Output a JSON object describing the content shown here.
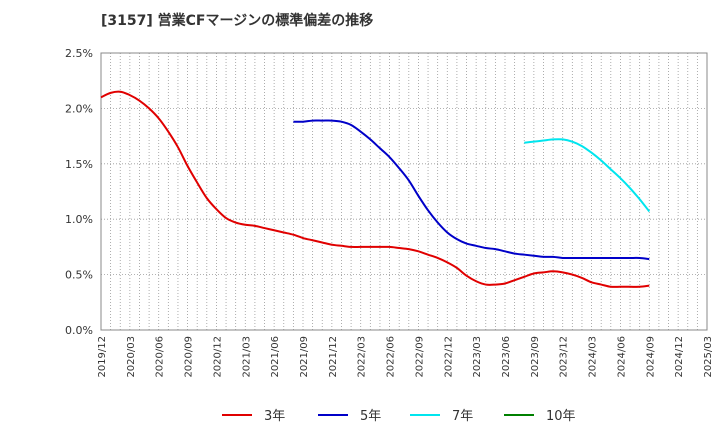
{
  "title": "[3157]  営業CFマージンの標準偏差の推移",
  "colors": {
    "3y": "#e00000",
    "5y": "#0000c8",
    "7y": "#00e5ee",
    "10y": "#008000",
    "grid": "#999999",
    "axis": "#888888"
  },
  "chart_data": {
    "type": "line",
    "title": "[3157]  営業CFマージンの標準偏差の推移",
    "ylim": [
      0,
      0.025
    ],
    "y_ticks": [
      "0.0%",
      "0.5%",
      "1.0%",
      "1.5%",
      "2.0%",
      "2.5%"
    ],
    "x_tick_labels": [
      "2019/12",
      "2020/03",
      "2020/06",
      "2020/09",
      "2020/12",
      "2021/03",
      "2021/06",
      "2021/09",
      "2021/12",
      "2022/03",
      "2022/06",
      "2022/09",
      "2022/12",
      "2023/03",
      "2023/06",
      "2023/09",
      "2023/12",
      "2024/03",
      "2024/06",
      "2024/09",
      "2024/12",
      "2025/03"
    ],
    "x_range": [
      "2019/12",
      "2025/03"
    ],
    "grid": true,
    "legend_position": "bottom",
    "series": [
      {
        "name": "3年",
        "color": "#e00000",
        "points": [
          [
            "2019/12",
            0.021
          ],
          [
            "2020/01",
            0.0214
          ],
          [
            "2020/02",
            0.0215
          ],
          [
            "2020/03",
            0.0212
          ],
          [
            "2020/04",
            0.0207
          ],
          [
            "2020/05",
            0.02
          ],
          [
            "2020/06",
            0.0191
          ],
          [
            "2020/07",
            0.0179
          ],
          [
            "2020/08",
            0.0165
          ],
          [
            "2020/09",
            0.0148
          ],
          [
            "2020/10",
            0.0133
          ],
          [
            "2020/11",
            0.0119
          ],
          [
            "2020/12",
            0.0109
          ],
          [
            "2021/01",
            0.0101
          ],
          [
            "2021/02",
            0.0097
          ],
          [
            "2021/03",
            0.0095
          ],
          [
            "2021/04",
            0.0094
          ],
          [
            "2021/05",
            0.0092
          ],
          [
            "2021/06",
            0.009
          ],
          [
            "2021/07",
            0.0088
          ],
          [
            "2021/08",
            0.0086
          ],
          [
            "2021/09",
            0.0083
          ],
          [
            "2021/10",
            0.0081
          ],
          [
            "2021/11",
            0.0079
          ],
          [
            "2021/12",
            0.0077
          ],
          [
            "2022/01",
            0.0076
          ],
          [
            "2022/02",
            0.0075
          ],
          [
            "2022/03",
            0.0075
          ],
          [
            "2022/04",
            0.0075
          ],
          [
            "2022/05",
            0.0075
          ],
          [
            "2022/06",
            0.0075
          ],
          [
            "2022/07",
            0.0074
          ],
          [
            "2022/08",
            0.0073
          ],
          [
            "2022/09",
            0.0071
          ],
          [
            "2022/10",
            0.0068
          ],
          [
            "2022/11",
            0.0065
          ],
          [
            "2022/12",
            0.0061
          ],
          [
            "2023/01",
            0.0056
          ],
          [
            "2023/02",
            0.0049
          ],
          [
            "2023/03",
            0.0044
          ],
          [
            "2023/04",
            0.0041
          ],
          [
            "2023/05",
            0.0041
          ],
          [
            "2023/06",
            0.0042
          ],
          [
            "2023/07",
            0.0045
          ],
          [
            "2023/08",
            0.0048
          ],
          [
            "2023/09",
            0.0051
          ],
          [
            "2023/10",
            0.0052
          ],
          [
            "2023/11",
            0.0053
          ],
          [
            "2023/12",
            0.0052
          ],
          [
            "2024/01",
            0.005
          ],
          [
            "2024/02",
            0.0047
          ],
          [
            "2024/03",
            0.0043
          ],
          [
            "2024/04",
            0.0041
          ],
          [
            "2024/05",
            0.0039
          ],
          [
            "2024/06",
            0.0039
          ],
          [
            "2024/07",
            0.0039
          ],
          [
            "2024/08",
            0.0039
          ],
          [
            "2024/09",
            0.004
          ]
        ]
      },
      {
        "name": "5年",
        "color": "#0000c8",
        "points": [
          [
            "2021/08",
            0.0188
          ],
          [
            "2021/09",
            0.0188
          ],
          [
            "2021/10",
            0.0189
          ],
          [
            "2021/11",
            0.0189
          ],
          [
            "2021/12",
            0.0189
          ],
          [
            "2022/01",
            0.0188
          ],
          [
            "2022/02",
            0.0185
          ],
          [
            "2022/03",
            0.0179
          ],
          [
            "2022/04",
            0.0172
          ],
          [
            "2022/05",
            0.0164
          ],
          [
            "2022/06",
            0.0156
          ],
          [
            "2022/07",
            0.0146
          ],
          [
            "2022/08",
            0.0135
          ],
          [
            "2022/09",
            0.0121
          ],
          [
            "2022/10",
            0.0108
          ],
          [
            "2022/11",
            0.0097
          ],
          [
            "2022/12",
            0.0088
          ],
          [
            "2023/01",
            0.0082
          ],
          [
            "2023/02",
            0.0078
          ],
          [
            "2023/03",
            0.0076
          ],
          [
            "2023/04",
            0.0074
          ],
          [
            "2023/05",
            0.0073
          ],
          [
            "2023/06",
            0.0071
          ],
          [
            "2023/07",
            0.0069
          ],
          [
            "2023/08",
            0.0068
          ],
          [
            "2023/09",
            0.0067
          ],
          [
            "2023/10",
            0.0066
          ],
          [
            "2023/11",
            0.0066
          ],
          [
            "2023/12",
            0.0065
          ],
          [
            "2024/01",
            0.0065
          ],
          [
            "2024/02",
            0.0065
          ],
          [
            "2024/03",
            0.0065
          ],
          [
            "2024/04",
            0.0065
          ],
          [
            "2024/05",
            0.0065
          ],
          [
            "2024/06",
            0.0065
          ],
          [
            "2024/07",
            0.0065
          ],
          [
            "2024/08",
            0.0065
          ],
          [
            "2024/09",
            0.0064
          ]
        ]
      },
      {
        "name": "7年",
        "color": "#00e5ee",
        "points": [
          [
            "2023/08",
            0.0169
          ],
          [
            "2023/09",
            0.017
          ],
          [
            "2023/10",
            0.0171
          ],
          [
            "2023/11",
            0.0172
          ],
          [
            "2023/12",
            0.0172
          ],
          [
            "2024/01",
            0.017
          ],
          [
            "2024/02",
            0.0166
          ],
          [
            "2024/03",
            0.016
          ],
          [
            "2024/04",
            0.0153
          ],
          [
            "2024/05",
            0.0145
          ],
          [
            "2024/06",
            0.0137
          ],
          [
            "2024/07",
            0.0128
          ],
          [
            "2024/08",
            0.0118
          ],
          [
            "2024/09",
            0.0107
          ]
        ]
      },
      {
        "name": "10年",
        "color": "#008000",
        "points": []
      }
    ]
  }
}
